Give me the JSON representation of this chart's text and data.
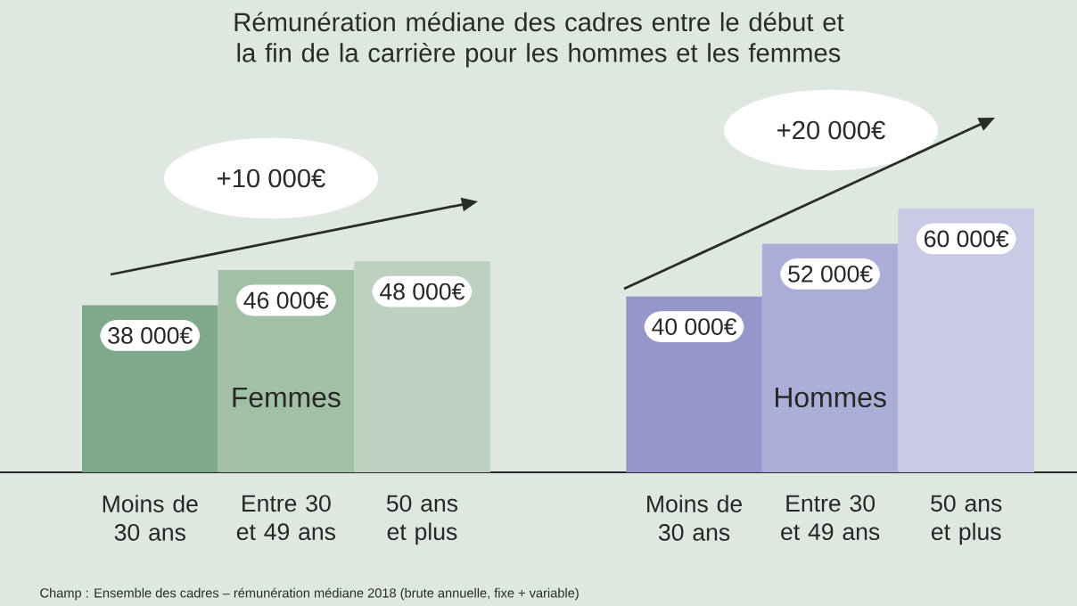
{
  "chart_data": {
    "type": "bar",
    "title": "Rémunération médiane des cadres entre le début et la fin de la carrière pour les hommes et les femmes",
    "categories": [
      "Moins de 30 ans",
      "Entre 30 et 49 ans",
      "50 ans et plus",
      null,
      "Moins de 30 ans",
      "Entre 30 et 49 ans",
      "50 ans et plus"
    ],
    "values": [
      38000,
      46000,
      48000,
      null,
      40000,
      52000,
      60000
    ],
    "colors": [
      "#7fa98a",
      "#a2c0a6",
      "#bdd1c1",
      null,
      "#9596c9",
      "#adaed8",
      "#c9cae6"
    ],
    "value_labels": [
      "38 000€",
      "46 000€",
      "48 000€",
      null,
      "40 000€",
      "52 000€",
      "60 000€"
    ],
    "annotations": [
      "Femmes",
      "Hommes",
      "+10 000€",
      "+20 000€",
      "Champ : Ensemble des cadres – rémunération médiane 2018 (brute annuelle, fixe + variable)"
    ]
  }
}
